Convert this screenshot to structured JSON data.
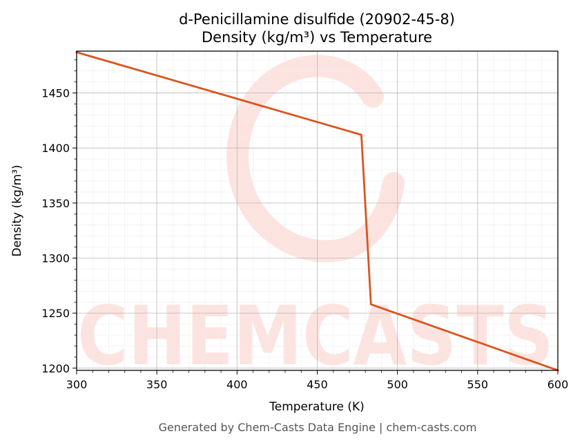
{
  "chart_data": {
    "type": "line",
    "title_line1": "d-Penicillamine disulfide (20902-45-8)",
    "title_line2": "Density (kg/m³) vs Temperature",
    "xlabel": "Temperature (K)",
    "ylabel": "Density (kg/m³)",
    "xlim": [
      300,
      600
    ],
    "ylim": [
      1198,
      1488
    ],
    "x_ticks": [
      300,
      350,
      400,
      450,
      500,
      550,
      600
    ],
    "y_ticks": [
      1200,
      1250,
      1300,
      1350,
      1400,
      1450
    ],
    "grid": true,
    "series": [
      {
        "color": "#d9541e",
        "x": [
          300,
          477.5,
          483.5,
          600
        ],
        "y": [
          1487,
          1412,
          1258,
          1198
        ]
      }
    ]
  },
  "watermark": {
    "text": "CHEMCASTS",
    "color": "#fde3df"
  },
  "footer": "Generated by Chem-Casts Data Engine | chem-casts.com"
}
